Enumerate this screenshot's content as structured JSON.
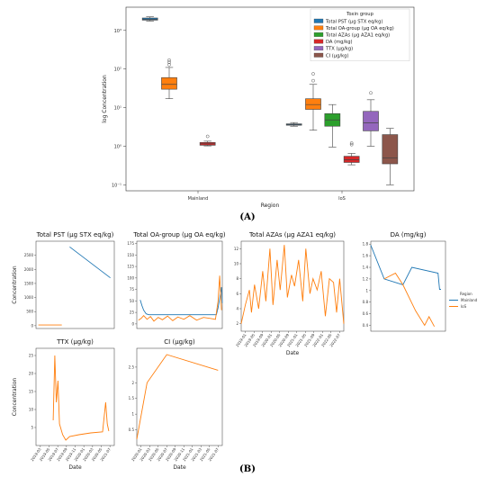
{
  "figure": {
    "panel_a_label": "(A)",
    "panel_b_label": "(B)"
  },
  "colors": {
    "blue": "#1f77b4",
    "orange": "#ff7f0e",
    "green": "#2ca02c",
    "red": "#d62728",
    "purple": "#9467bd",
    "brown": "#8c564b"
  },
  "chart_data": [
    {
      "type": "box",
      "xlabel": "Region",
      "ylabel": "log Concentration",
      "y_scale": "log",
      "ylim": [
        0.07,
        4000
      ],
      "y_ticks": [
        0.1,
        1,
        10,
        100,
        1000
      ],
      "y_tick_labels": [
        "10⁻¹",
        "10⁰",
        "10¹",
        "10²",
        "10³"
      ],
      "categories": [
        "Mainland",
        "IoS"
      ],
      "legend_title": "Toxin group",
      "legend_position": "top-right",
      "series": [
        {
          "name": "Total PST (μg STX eq/kg)",
          "color": "#1f77b4",
          "boxes": [
            {
              "category": "Mainland",
              "min": 1750,
              "q1": 1850,
              "median": 1950,
              "q3": 2100,
              "max": 2250,
              "outliers": []
            },
            {
              "category": "IoS",
              "min": 3.3,
              "q1": 3.5,
              "median": 3.65,
              "q3": 3.8,
              "max": 4.1,
              "outliers": []
            }
          ]
        },
        {
          "name": "Total OA-group (μg OA eq/kg)",
          "color": "#ff7f0e",
          "boxes": [
            {
              "category": "Mainland",
              "min": 17,
              "q1": 30,
              "median": 40,
              "q3": 60,
              "max": 110,
              "outliers": [
                130,
                150,
                170
              ]
            },
            {
              "category": "IoS",
              "min": 2.6,
              "q1": 9,
              "median": 12,
              "q3": 17,
              "max": 40,
              "outliers": [
                50,
                75
              ]
            }
          ]
        },
        {
          "name": "Total AZAs (μg AZA1 eq/kg)",
          "color": "#2ca02c",
          "boxes": [
            {
              "category": "IoS",
              "min": 0.95,
              "q1": 3.3,
              "median": 4.8,
              "q3": 7,
              "max": 12,
              "outliers": []
            }
          ]
        },
        {
          "name": "DA (mg/kg)",
          "color": "#d62728",
          "boxes": [
            {
              "category": "Mainland",
              "min": 1.02,
              "q1": 1.06,
              "median": 1.15,
              "q3": 1.25,
              "max": 1.35,
              "outliers": [
                1.8
              ]
            },
            {
              "category": "IoS",
              "min": 0.33,
              "q1": 0.38,
              "median": 0.45,
              "q3": 0.55,
              "max": 0.65,
              "outliers": [
                1.1,
                1.2
              ]
            }
          ]
        },
        {
          "name": "TTX (μg/kg)",
          "color": "#9467bd",
          "boxes": [
            {
              "category": "IoS",
              "min": 1,
              "q1": 2.5,
              "median": 4,
              "q3": 8,
              "max": 16,
              "outliers": [
                24
              ]
            }
          ]
        },
        {
          "name": "CI (μg/kg)",
          "color": "#8c564b",
          "boxes": [
            {
              "category": "IoS",
              "min": 0.1,
              "q1": 0.35,
              "median": 0.5,
              "q3": 2,
              "max": 2.9,
              "outliers": []
            }
          ]
        }
      ]
    },
    {
      "type": "line",
      "title": "Total PST (μg STX eq/kg)",
      "xlabel": "",
      "ylabel": "Concentration",
      "ylim": [
        -100,
        3000
      ],
      "y_ticks": [
        0,
        500,
        1000,
        1500,
        2000,
        2500
      ],
      "x_range": [
        0,
        1
      ],
      "series": [
        {
          "name": "Mainland",
          "color": "#1f77b4",
          "x": [
            0.43,
            0.95
          ],
          "y": [
            2800,
            1700
          ]
        },
        {
          "name": "IoS",
          "color": "#ff7f0e",
          "x": [
            0.03,
            0.33
          ],
          "y": [
            25,
            25
          ]
        }
      ]
    },
    {
      "type": "line",
      "title": "Total OA-group (μg OA eq/kg)",
      "xlabel": "",
      "ylabel": "",
      "ylim": [
        -0.1,
        1.8
      ],
      "y_ticks": [
        0,
        0.25,
        0.5,
        0.75,
        1.0,
        1.25,
        1.5,
        1.75
      ],
      "y_tick_labels": [
        "0",
        "25",
        "50",
        "75",
        "100",
        "125",
        "150",
        "175"
      ],
      "x_range": [
        0,
        1
      ],
      "series": [
        {
          "name": "Mainland",
          "color": "#1f77b4",
          "x": [
            0.04,
            0.06,
            0.08,
            0.11,
            0.14,
            0.2,
            0.4,
            0.6,
            0.8,
            0.93,
            0.95,
            0.97,
            0.99,
            1.0
          ],
          "y": [
            0.52,
            0.4,
            0.3,
            0.22,
            0.2,
            0.2,
            0.2,
            0.2,
            0.2,
            0.2,
            0.35,
            0.55,
            0.8,
            0.45
          ]
        },
        {
          "name": "IoS",
          "color": "#ff7f0e",
          "x": [
            0.02,
            0.05,
            0.08,
            0.12,
            0.16,
            0.2,
            0.25,
            0.3,
            0.36,
            0.42,
            0.48,
            0.55,
            0.62,
            0.7,
            0.78,
            0.86,
            0.92,
            0.95,
            0.97,
            0.99
          ],
          "y": [
            0.08,
            0.12,
            0.18,
            0.1,
            0.16,
            0.06,
            0.14,
            0.09,
            0.17,
            0.07,
            0.15,
            0.1,
            0.18,
            0.08,
            0.14,
            0.12,
            0.1,
            0.5,
            1.05,
            0.3
          ]
        }
      ]
    },
    {
      "type": "line",
      "title": "Total AZAs (μg AZA1 eq/kg)",
      "xlabel": "Date",
      "ylabel": "",
      "ylim": [
        1,
        13
      ],
      "y_ticks": [
        2,
        4,
        6,
        8,
        10,
        12
      ],
      "x_tick_labels": [
        "2019-01",
        "2019-05",
        "2019-09",
        "2020-01",
        "2020-05",
        "2020-09",
        "2021-01",
        "2021-05",
        "2021-09",
        "2022-01",
        "2022-05",
        "2022-07"
      ],
      "x_range": [
        0,
        1
      ],
      "series": [
        {
          "name": "IoS",
          "color": "#ff7f0e",
          "x": [
            0.0,
            0.04,
            0.08,
            0.1,
            0.13,
            0.17,
            0.21,
            0.24,
            0.28,
            0.31,
            0.35,
            0.38,
            0.42,
            0.45,
            0.49,
            0.52,
            0.56,
            0.6,
            0.63,
            0.67,
            0.7,
            0.74,
            0.78,
            0.82,
            0.86,
            0.9,
            0.93,
            0.96,
            1.0
          ],
          "y": [
            2,
            4.5,
            6.5,
            3.5,
            7.2,
            4.0,
            9.0,
            5.0,
            12.0,
            4.5,
            10.5,
            6.5,
            12.5,
            5.5,
            8.5,
            7.0,
            10.5,
            5.0,
            12.0,
            6.0,
            8.0,
            6.5,
            9.0,
            3.0,
            8.0,
            7.5,
            3.5,
            8.0,
            2.0
          ]
        }
      ]
    },
    {
      "type": "line",
      "title": "DA (mg/kg)",
      "xlabel": "",
      "ylabel": "",
      "ylim": [
        0.3,
        1.85
      ],
      "y_ticks": [
        0.4,
        0.6,
        0.8,
        1.0,
        1.2,
        1.4,
        1.6,
        1.8
      ],
      "x_range": [
        0,
        1
      ],
      "legend_title": "Region",
      "legend_position": "right",
      "series": [
        {
          "name": "Mainland",
          "color": "#1f77b4",
          "x": [
            0.0,
            0.18,
            0.43,
            0.55,
            0.9,
            0.92,
            0.94
          ],
          "y": [
            1.78,
            1.2,
            1.1,
            1.4,
            1.3,
            1.02,
            1.02
          ]
        },
        {
          "name": "IoS",
          "color": "#ff7f0e",
          "x": [
            0.18,
            0.33,
            0.43,
            0.6,
            0.72,
            0.78,
            0.85
          ],
          "y": [
            1.2,
            1.3,
            1.1,
            0.65,
            0.4,
            0.55,
            0.38
          ]
        }
      ]
    },
    {
      "type": "line",
      "title": "TTX (μg/kg)",
      "xlabel": "Date",
      "ylabel": "Concentration",
      "ylim": [
        0,
        27
      ],
      "y_ticks": [
        5,
        10,
        15,
        20,
        25
      ],
      "x_tick_labels": [
        "2019-03",
        "2019-05",
        "2019-07",
        "2019-09",
        "2019-11",
        "2020-01",
        "2020-03",
        "2020-05",
        "2021-07"
      ],
      "x_range": [
        0,
        1
      ],
      "series": [
        {
          "name": "IoS",
          "color": "#ff7f0e",
          "x": [
            0.22,
            0.24,
            0.26,
            0.28,
            0.3,
            0.34,
            0.38,
            0.43,
            0.55,
            0.7,
            0.85,
            0.89,
            0.91,
            0.93
          ],
          "y": [
            7,
            25,
            12,
            18,
            6,
            3,
            1.5,
            2.5,
            3,
            3.5,
            3.8,
            12,
            6,
            4
          ]
        }
      ]
    },
    {
      "type": "line",
      "title": "CI (μg/kg)",
      "xlabel": "Date",
      "ylabel": "",
      "ylim": [
        0,
        3.1
      ],
      "y_ticks": [
        0.5,
        1.0,
        1.5,
        2.0,
        2.5
      ],
      "x_tick_labels": [
        "2020-01",
        "2020-03",
        "2020-05",
        "2020-07",
        "2020-09",
        "2020-11",
        "2021-01",
        "2021-03",
        "2021-05",
        "2021-07"
      ],
      "x_range": [
        0,
        1
      ],
      "series": [
        {
          "name": "IoS",
          "color": "#ff7f0e",
          "x": [
            0.0,
            0.12,
            0.35,
            0.95
          ],
          "y": [
            0.2,
            2.0,
            2.9,
            2.4
          ]
        }
      ]
    }
  ]
}
